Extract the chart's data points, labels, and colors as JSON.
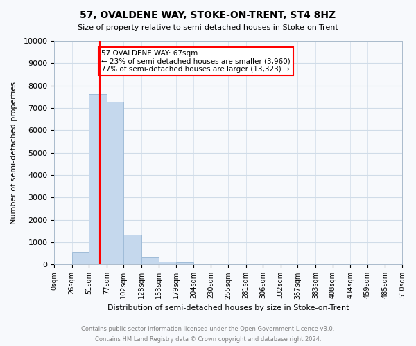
{
  "title": "57, OVALDENE WAY, STOKE-ON-TRENT, ST4 8HZ",
  "subtitle": "Size of property relative to semi-detached houses in Stoke-on-Trent",
  "xlabel": "Distribution of semi-detached houses by size in Stoke-on-Trent",
  "ylabel": "Number of semi-detached properties",
  "bin_edges": [
    0,
    26,
    51,
    77,
    102,
    128,
    153,
    179,
    204,
    230,
    255,
    281,
    306,
    332,
    357,
    383,
    408,
    434,
    459,
    485,
    510
  ],
  "bin_labels": [
    "0sqm",
    "26sqm",
    "51sqm",
    "77sqm",
    "102sqm",
    "128sqm",
    "153sqm",
    "179sqm",
    "204sqm",
    "230sqm",
    "255sqm",
    "281sqm",
    "306sqm",
    "332sqm",
    "357sqm",
    "383sqm",
    "408sqm",
    "434sqm",
    "459sqm",
    "485sqm",
    "510sqm"
  ],
  "counts": [
    0,
    580,
    7620,
    7280,
    1340,
    320,
    130,
    100,
    0,
    0,
    0,
    0,
    0,
    0,
    0,
    0,
    0,
    0,
    0,
    0
  ],
  "bar_color": "#c5d8ed",
  "bar_edge_color": "#a0bcd8",
  "property_line_x": 67,
  "property_line_color": "red",
  "annotation_text": "57 OVALDENE WAY: 67sqm\n← 23% of semi-detached houses are smaller (3,960)\n77% of semi-detached houses are larger (13,323) →",
  "annotation_box_color": "white",
  "annotation_box_edge_color": "red",
  "ylim": [
    0,
    10000
  ],
  "yticks": [
    0,
    1000,
    2000,
    3000,
    4000,
    5000,
    6000,
    7000,
    8000,
    9000,
    10000
  ],
  "footer_line1": "Contains HM Land Registry data © Crown copyright and database right 2024.",
  "footer_line2": "Contains public sector information licensed under the Open Government Licence v3.0.",
  "background_color": "#f7f9fc",
  "grid_color": "#d0dce8"
}
